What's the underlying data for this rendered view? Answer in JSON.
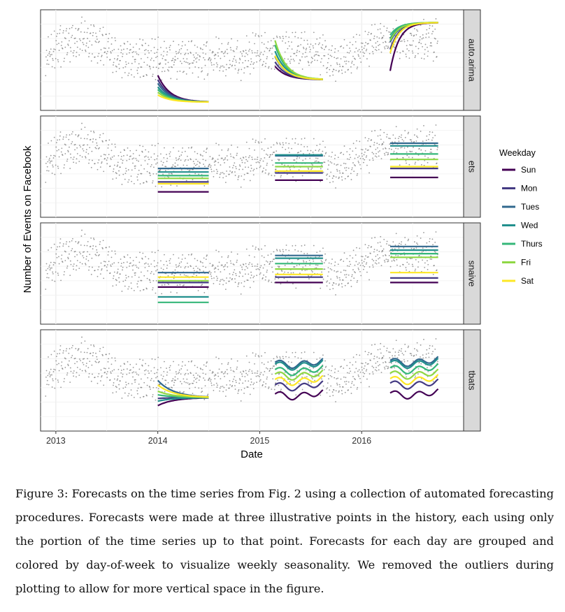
{
  "chart_data": {
    "type": "line",
    "xlabel": "Date",
    "ylabel": "Number of Events on Facebook",
    "x_ticks": [
      "2013",
      "2014",
      "2015",
      "2016"
    ],
    "x_range": [
      2012.85,
      2017.0
    ],
    "y_range": [
      0,
      1
    ],
    "legend": {
      "title": "Weekday",
      "position": "right",
      "entries": [
        {
          "name": "Sun",
          "color": "#440154"
        },
        {
          "name": "Mon",
          "color": "#443a83"
        },
        {
          "name": "Tues",
          "color": "#31688e"
        },
        {
          "name": "Wed",
          "color": "#21908d"
        },
        {
          "name": "Thurs",
          "color": "#35b779"
        },
        {
          "name": "Fri",
          "color": "#8fd744"
        },
        {
          "name": "Sat",
          "color": "#fde725"
        }
      ]
    },
    "forecast_windows": [
      {
        "start": 2014.0,
        "end": 2014.5
      },
      {
        "start": 2015.15,
        "end": 2015.62
      },
      {
        "start": 2016.28,
        "end": 2016.75
      }
    ],
    "panels": [
      {
        "label": "auto.arima",
        "forecasts": [
          {
            "style": "decay",
            "start": [
              0.33,
              0.28,
              0.24,
              0.2,
              0.17,
              0.14,
              0.11
            ],
            "end": 0.03
          },
          {
            "style": "decay",
            "start": [
              0.43,
              0.48,
              0.54,
              0.6,
              0.67,
              0.72,
              0.55
            ],
            "end": 0.28
          },
          {
            "style": "rise",
            "start": [
              0.38,
              0.62,
              0.7,
              0.74,
              0.78,
              0.72,
              0.58
            ],
            "end": 0.92
          }
        ]
      },
      {
        "label": "ets",
        "forecasts": [
          {
            "style": "flat",
            "levels": [
              0.22,
              0.33,
              0.48,
              0.44,
              0.4,
              0.37,
              0.31
            ]
          },
          {
            "style": "flat",
            "levels": [
              0.35,
              0.43,
              0.62,
              0.63,
              0.54,
              0.5,
              0.45
            ]
          },
          {
            "style": "flat",
            "levels": [
              0.38,
              0.48,
              0.76,
              0.73,
              0.64,
              0.58,
              0.5
            ]
          }
        ]
      },
      {
        "label": "snaive",
        "forecasts": [
          {
            "style": "flat",
            "levels": [
              0.35,
              0.4,
              0.51,
              0.24,
              0.18,
              0.42,
              0.46
            ]
          },
          {
            "style": "flat",
            "levels": [
              0.4,
              0.46,
              0.7,
              0.67,
              0.61,
              0.55,
              0.49
            ]
          },
          {
            "style": "flat",
            "levels": [
              0.4,
              0.45,
              0.8,
              0.76,
              0.72,
              0.68,
              0.51
            ]
          }
        ]
      },
      {
        "label": "tbats",
        "forecasts": [
          {
            "style": "converge",
            "start": [
              0.22,
              0.3,
              0.5,
              0.27,
              0.34,
              0.38,
              0.45
            ],
            "end": 0.31
          },
          {
            "style": "wave",
            "levels": [
              0.35,
              0.45,
              0.7,
              0.68,
              0.62,
              0.57,
              0.51
            ]
          },
          {
            "style": "wave",
            "levels": [
              0.36,
              0.47,
              0.72,
              0.7,
              0.64,
              0.58,
              0.52
            ]
          }
        ]
      }
    ]
  },
  "caption": "Figure 3: Forecasts on the time series from Fig. 2 using a collection of automated forecasting procedures. Forecasts were made at three illustrative points in the history, each using only the portion of the time series up to that point. Forecasts for each day are grouped and colored by day-of-week to visualize weekly seasonality. We removed the outliers during plotting to allow for more vertical space in the figure."
}
